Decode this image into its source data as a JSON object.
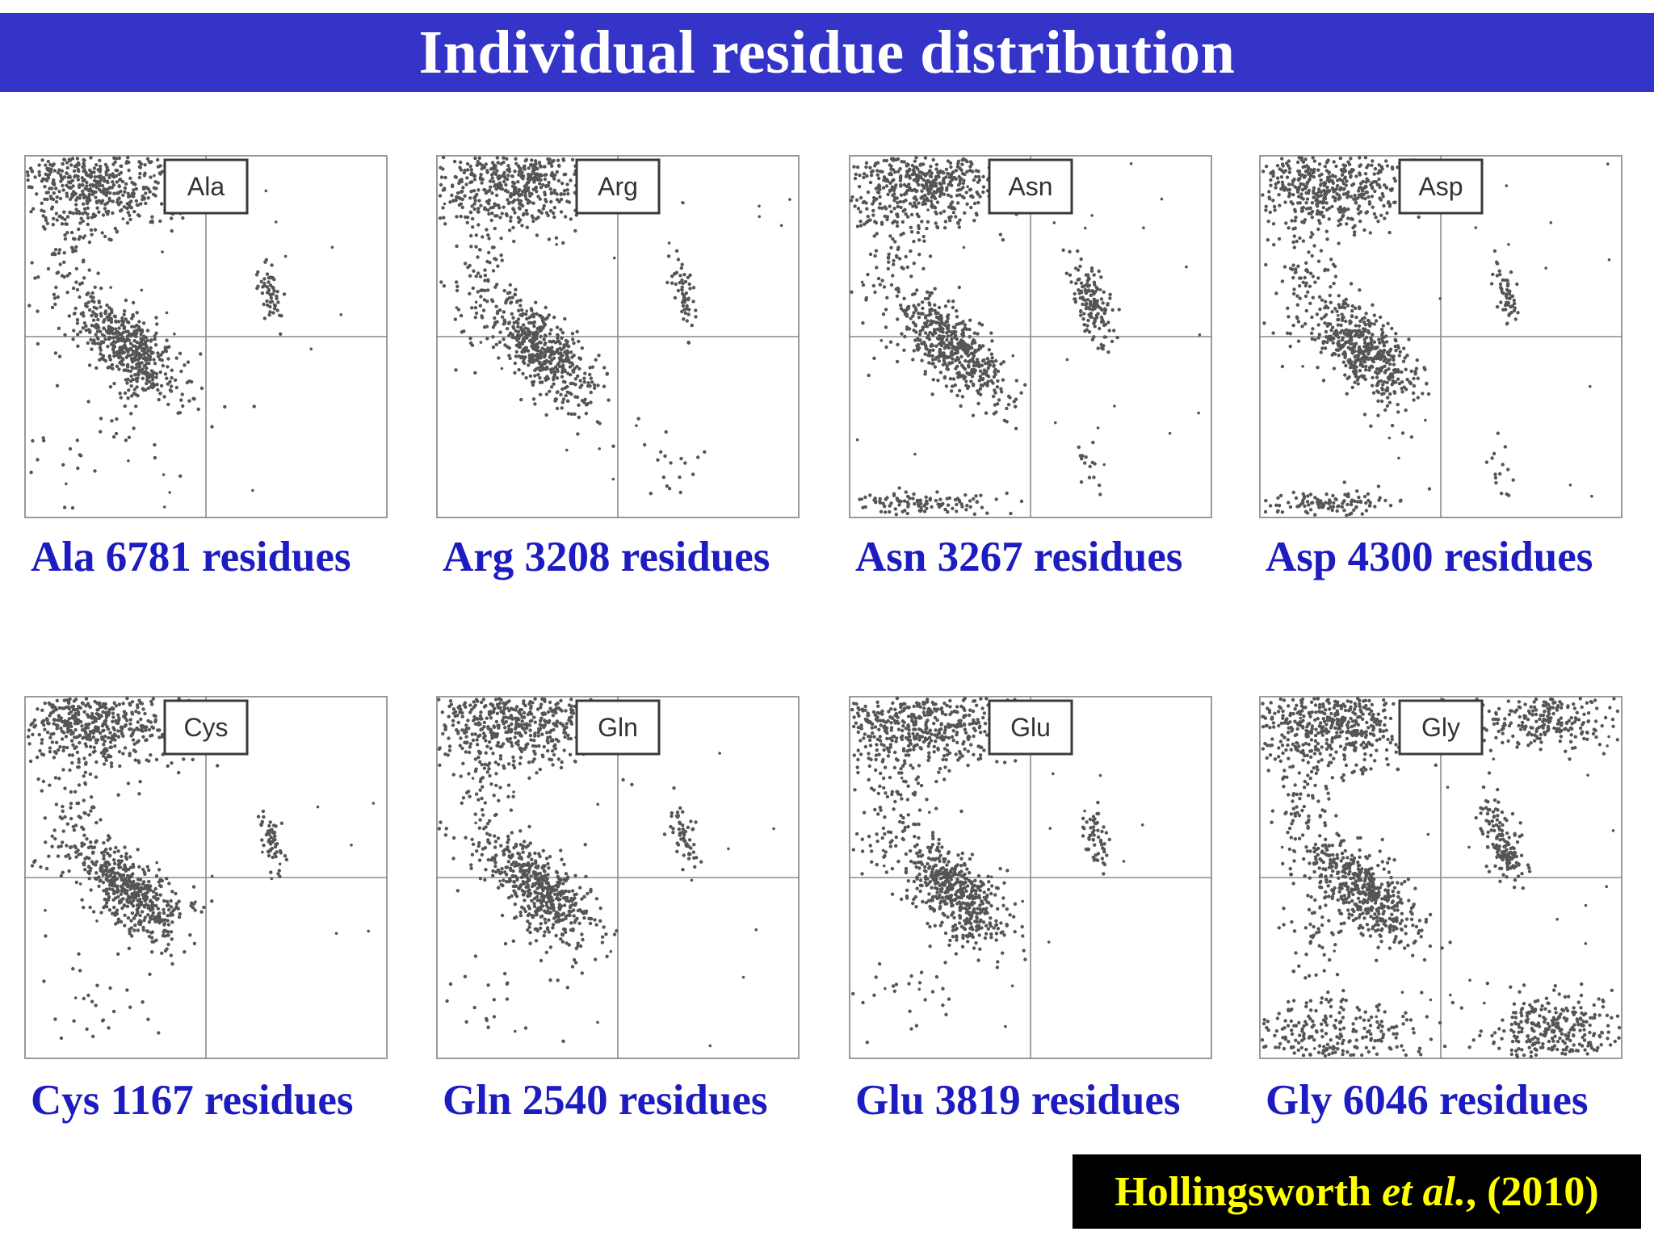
{
  "title": "Individual residue distribution",
  "citation": {
    "author": "Hollingsworth ",
    "etal": "et al.",
    "year": ", (2010)"
  },
  "colors": {
    "title_bar": "#3434c8",
    "caption_text": "#1c1cc0",
    "citation_bg": "#000000",
    "citation_text": "#ffff00",
    "points": "#555555"
  },
  "chart_data": [
    {
      "type": "scatter",
      "residue": "Ala",
      "count": "6781",
      "caption": "Ala 6781 residues",
      "clusters": [
        "beta",
        "alphaR",
        "alphaL-small",
        "bottom-left-sparse"
      ]
    },
    {
      "type": "scatter",
      "residue": "Arg",
      "count": "3208",
      "caption": "Arg 3208 residues",
      "clusters": [
        "beta",
        "alphaR",
        "alphaL-small",
        "bottom-right-sparse"
      ]
    },
    {
      "type": "scatter",
      "residue": "Asn",
      "count": "3267",
      "caption": "Asn 3267 residues",
      "clusters": [
        "beta",
        "alphaR",
        "alphaL-large",
        "bottom-left-band"
      ]
    },
    {
      "type": "scatter",
      "residue": "Asp",
      "count": "4300",
      "caption": "Asp 4300 residues",
      "clusters": [
        "beta",
        "alphaR",
        "alphaL-small",
        "bottom-left-band"
      ]
    },
    {
      "type": "scatter",
      "residue": "Cys",
      "count": "1167",
      "caption": "Cys 1167 residues",
      "clusters": [
        "beta",
        "alphaR",
        "alphaL-small",
        "bottom-left-sparse"
      ]
    },
    {
      "type": "scatter",
      "residue": "Gln",
      "count": "2540",
      "caption": "Gln 2540 residues",
      "clusters": [
        "beta",
        "alphaR",
        "alphaL-small",
        "bottom-left-sparse"
      ]
    },
    {
      "type": "scatter",
      "residue": "Glu",
      "count": "3819",
      "caption": "Glu 3819 residues",
      "clusters": [
        "beta",
        "alphaR",
        "alphaL-small",
        "bottom-left-sparse"
      ]
    },
    {
      "type": "scatter",
      "residue": "Gly",
      "count": "6046",
      "caption": "Gly 6046 residues",
      "clusters": [
        "beta",
        "alphaR",
        "alphaL-large",
        "corners-all"
      ]
    }
  ]
}
